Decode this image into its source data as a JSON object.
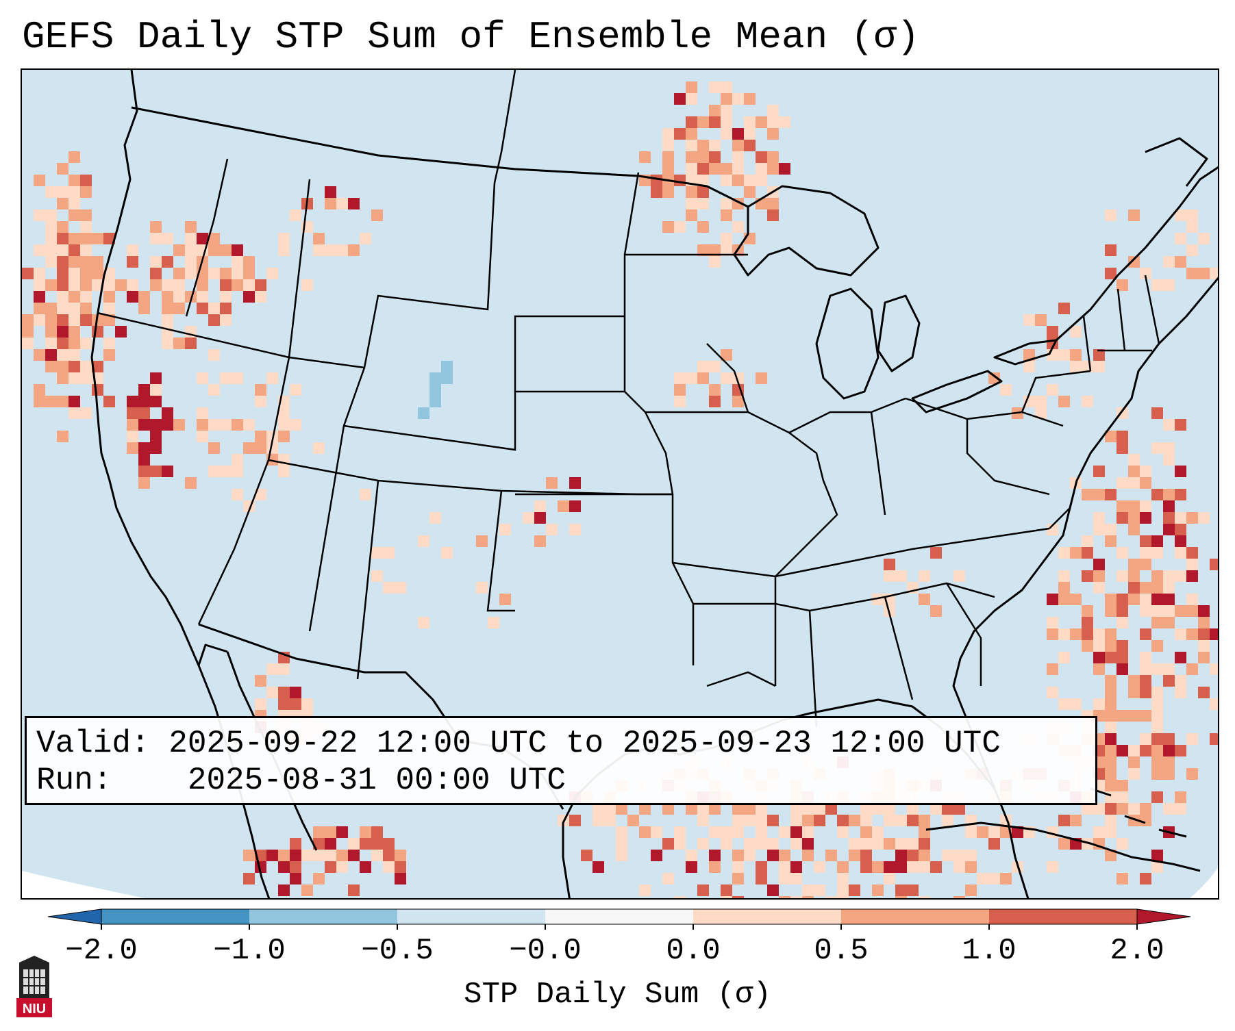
{
  "title": "GEFS Daily STP Sum of Ensemble Mean (σ)",
  "info": {
    "valid_label": "Valid:",
    "valid_value": "2025-09-22 12:00 UTC to 2025-09-23 12:00 UTC",
    "run_label": "Run:",
    "run_value": "2025-08-31 00:00 UTC"
  },
  "colorbar": {
    "label": "STP Daily Sum (σ)",
    "ticks": [
      "−2.0",
      "−1.0",
      "−0.5",
      "−0.0",
      "0.0",
      "0.5",
      "1.0",
      "2.0"
    ],
    "colors": [
      "#4393c3",
      "#92c5de",
      "#d1e5f0",
      "#f7f7f7",
      "#fddbc7",
      "#f4a582",
      "#d6604d"
    ],
    "extend_low_color": "#2166ac",
    "extend_high_color": "#b2182b"
  },
  "map": {
    "background_color": "#d1e5f0",
    "outline_color": "#000000",
    "region": "Continental United States",
    "anomaly_regions": [
      {
        "name": "Pacific Northwest coast",
        "level": "0.5 to 1.0"
      },
      {
        "name": "Northern California",
        "level": "above 2.0"
      },
      {
        "name": "Central Kansas",
        "level": "above 2.0"
      },
      {
        "name": "Upper Midwest",
        "level": "0.5 to 1.0"
      },
      {
        "name": "Gulf of Mexico",
        "level": "1.0 to 2.0"
      },
      {
        "name": "Western Atlantic",
        "level": "1.0 to 2.0"
      },
      {
        "name": "Eastern Colorado",
        "level": "−1.0 to −0.5"
      }
    ]
  },
  "logo": {
    "text": "NIU"
  }
}
